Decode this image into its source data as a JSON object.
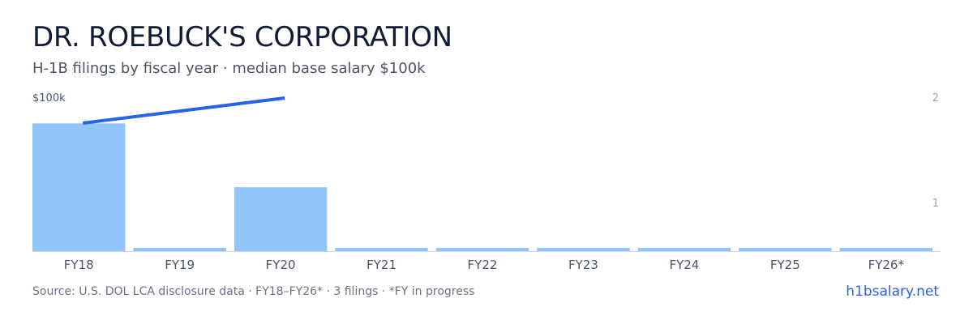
{
  "header": {
    "title": "DR. ROEBUCK'S CORPORATION",
    "subtitle": "H-1B filings by fiscal year · median base salary $100k"
  },
  "footer": {
    "source": "Source: U.S. DOL LCA disclosure data · FY18–FY26* · 3 filings · *FY in progress",
    "brand": "h1bsalary.net"
  },
  "colors": {
    "bar": "#93c5fd",
    "line": "#2563eb",
    "axis": "#d1d5db",
    "tick_text": "#4b5565",
    "right_tick_text": "#9ca3af"
  },
  "chart_data": {
    "type": "bar",
    "categories": [
      "FY18",
      "FY19",
      "FY20",
      "FY21",
      "FY22",
      "FY23",
      "FY24",
      "FY25",
      "FY26*"
    ],
    "series": [
      {
        "values": [
          2,
          0,
          1,
          0,
          0,
          0,
          0,
          0,
          0
        ],
        "axis": "right"
      }
    ],
    "right_axis": {
      "ticks": [
        "2",
        "1"
      ],
      "ylim": [
        0,
        2
      ]
    },
    "salary_line": {
      "label": "$100k",
      "points": [
        {
          "x": "FY18",
          "y": 100000
        },
        {
          "x": "FY20",
          "y": 100000
        }
      ]
    },
    "grid": false
  }
}
